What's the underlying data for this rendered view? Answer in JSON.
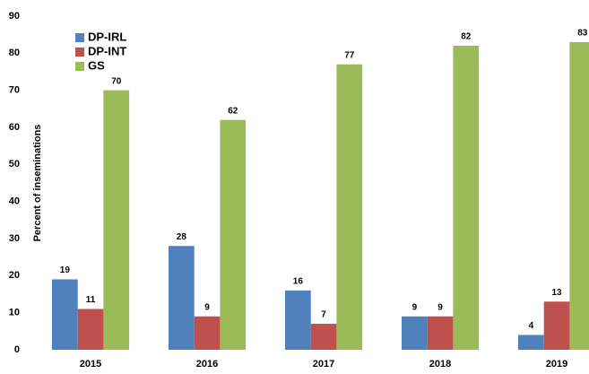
{
  "chart_data": {
    "type": "bar",
    "y_label": "Percent of inseminations",
    "categories": [
      "2015",
      "2016",
      "2017",
      "2018",
      "2019"
    ],
    "series": [
      {
        "name": "DP-IRL",
        "color": "#4f81bd",
        "values": [
          19,
          28,
          16,
          9,
          4
        ]
      },
      {
        "name": "DP-INT",
        "color": "#c0504d",
        "values": [
          11,
          9,
          7,
          9,
          13
        ]
      },
      {
        "name": "GS",
        "color": "#9bbb59",
        "values": [
          70,
          62,
          77,
          82,
          83
        ]
      }
    ],
    "ylim": [
      0,
      90
    ],
    "yticks": [
      0,
      10,
      20,
      30,
      40,
      50,
      60,
      70,
      80,
      90
    ],
    "grid": false,
    "legend": "upper left",
    "data_labels": true
  }
}
